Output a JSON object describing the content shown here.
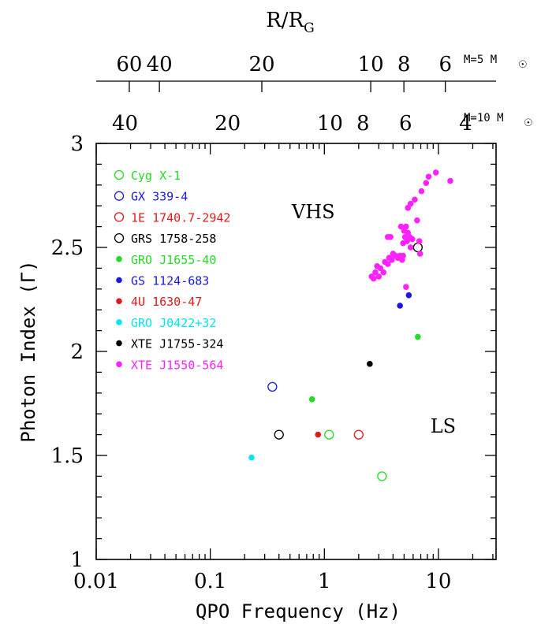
{
  "chart_data": {
    "type": "scatter",
    "xlabel": "QPO Frequency (Hz)",
    "ylabel": "Photon Index (Γ)",
    "xscale": "log",
    "xlim": [
      0.01,
      32
    ],
    "ylim": [
      1,
      3
    ],
    "x_ticks": [
      {
        "v": 0.01,
        "label": "0.01"
      },
      {
        "v": 0.1,
        "label": "0.1"
      },
      {
        "v": 1,
        "label": "1"
      },
      {
        "v": 10,
        "label": "10"
      }
    ],
    "y_ticks": [
      {
        "v": 1,
        "label": "1"
      },
      {
        "v": 1.5,
        "label": "1.5"
      },
      {
        "v": 2,
        "label": "2"
      },
      {
        "v": 2.5,
        "label": "2.5"
      },
      {
        "v": 3,
        "label": "3"
      }
    ],
    "top_axis": {
      "label_main": "R/R",
      "label_sub": "G",
      "mass5_label": "M=5 M",
      "mass10_label": "M=10 M",
      "mass_symbol": "☉",
      "m5_ticks": [
        {
          "v": 0.0195,
          "label": "60"
        },
        {
          "v": 0.0358,
          "label": "40"
        },
        {
          "v": 0.283,
          "label": "20"
        },
        {
          "v": 2.55,
          "label": "10"
        },
        {
          "v": 4.98,
          "label": "8"
        },
        {
          "v": 11.5,
          "label": "6"
        }
      ],
      "m10_ticks": [
        {
          "v": 0.0179,
          "label": "40"
        },
        {
          "v": 0.142,
          "label": "20"
        },
        {
          "v": 1.12,
          "label": "10"
        },
        {
          "v": 2.18,
          "label": "8"
        },
        {
          "v": 5.15,
          "label": "6"
        },
        {
          "v": 17.3,
          "label": "4"
        }
      ]
    },
    "annotations": [
      {
        "text": "VHS",
        "x": 0.8,
        "y": 2.64
      },
      {
        "text": "LS",
        "x": 11,
        "y": 1.61
      }
    ],
    "series": [
      {
        "name": "Cyg X-1",
        "color": "#22dd22",
        "marker": "open",
        "points": [
          [
            1.1,
            1.6
          ],
          [
            3.2,
            1.4
          ]
        ]
      },
      {
        "name": "GX 339-4",
        "color": "#1a1adf",
        "marker": "open",
        "points": [
          [
            0.35,
            1.83
          ]
        ]
      },
      {
        "name": "1E 1740.7-2942",
        "color": "#e01a1a",
        "marker": "open",
        "points": [
          [
            2.0,
            1.6
          ]
        ]
      },
      {
        "name": "GRS 1758-258",
        "color": "#000000",
        "marker": "open",
        "points": [
          [
            0.4,
            1.6
          ],
          [
            6.6,
            2.5
          ]
        ]
      },
      {
        "name": "GRO J1655-40",
        "color": "#22dd22",
        "marker": "filled",
        "points": [
          [
            0.78,
            1.77
          ],
          [
            6.6,
            2.07
          ]
        ]
      },
      {
        "name": "GS 1124-683",
        "color": "#1a1adf",
        "marker": "filled",
        "points": [
          [
            4.6,
            2.22
          ],
          [
            5.5,
            2.27
          ]
        ]
      },
      {
        "name": "4U 1630-47",
        "color": "#e01a1a",
        "marker": "filled",
        "points": [
          [
            0.88,
            1.6
          ]
        ]
      },
      {
        "name": "GRO J0422+32",
        "color": "#00e6f0",
        "marker": "filled",
        "points": [
          [
            0.23,
            1.49
          ]
        ]
      },
      {
        "name": "XTE J1755-324",
        "color": "#000000",
        "marker": "filled",
        "points": [
          [
            2.5,
            1.94
          ]
        ]
      },
      {
        "name": "XTE J1550-564",
        "color": "#ff22ff",
        "marker": "filled",
        "points": [
          [
            2.6,
            2.36
          ],
          [
            2.7,
            2.35
          ],
          [
            2.8,
            2.38
          ],
          [
            2.9,
            2.41
          ],
          [
            3.0,
            2.36
          ],
          [
            3.1,
            2.4
          ],
          [
            3.3,
            2.38
          ],
          [
            3.4,
            2.43
          ],
          [
            3.6,
            2.42
          ],
          [
            3.7,
            2.45
          ],
          [
            3.6,
            2.55
          ],
          [
            3.8,
            2.55
          ],
          [
            3.9,
            2.44
          ],
          [
            4.0,
            2.47
          ],
          [
            4.2,
            2.46
          ],
          [
            4.4,
            2.45
          ],
          [
            4.6,
            2.46
          ],
          [
            4.8,
            2.44
          ],
          [
            4.9,
            2.46
          ],
          [
            4.7,
            2.6
          ],
          [
            4.9,
            2.52
          ],
          [
            5.0,
            2.58
          ],
          [
            5.1,
            2.55
          ],
          [
            5.2,
            2.6
          ],
          [
            5.3,
            2.53
          ],
          [
            5.4,
            2.57
          ],
          [
            5.6,
            2.55
          ],
          [
            5.9,
            2.54
          ],
          [
            5.7,
            2.5
          ],
          [
            5.2,
            2.31
          ],
          [
            5.4,
            2.69
          ],
          [
            5.7,
            2.71
          ],
          [
            6.2,
            2.73
          ],
          [
            6.5,
            2.63
          ],
          [
            6.8,
            2.53
          ],
          [
            6.9,
            2.47
          ],
          [
            7.1,
            2.77
          ],
          [
            7.8,
            2.81
          ],
          [
            8.2,
            2.84
          ],
          [
            9.5,
            2.86
          ],
          [
            12.7,
            2.82
          ]
        ]
      }
    ]
  }
}
